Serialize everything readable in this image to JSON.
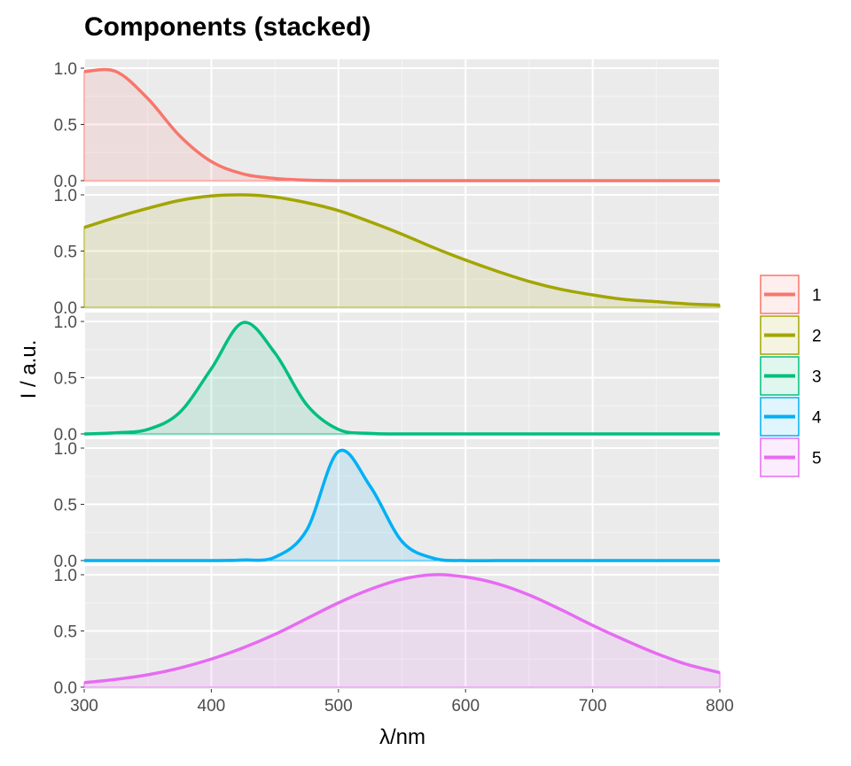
{
  "chart_data": {
    "type": "area",
    "title": "Components (stacked)",
    "xlabel": "λ/nm",
    "ylabel": "I / a.u.",
    "xlim": [
      300,
      800
    ],
    "ylim": [
      0,
      1.0
    ],
    "x_ticks": [
      300,
      400,
      500,
      600,
      700,
      800
    ],
    "y_ticks": [
      0.0,
      0.5,
      1.0
    ],
    "y_tick_labels": [
      "0.0",
      "0.5",
      "1.0"
    ],
    "grid": true,
    "legend_position": "right",
    "panel_background": "#ebebeb",
    "x": [
      300,
      325,
      350,
      375,
      400,
      425,
      450,
      475,
      500,
      525,
      550,
      575,
      600,
      625,
      650,
      675,
      700,
      725,
      750,
      775,
      800
    ],
    "series": [
      {
        "name": "1",
        "color": "#f8766d",
        "values": [
          0.97,
          0.97,
          0.73,
          0.4,
          0.17,
          0.06,
          0.02,
          0.005,
          0.0,
          0.0,
          0.0,
          0.0,
          0.0,
          0.0,
          0.0,
          0.0,
          0.0,
          0.0,
          0.0,
          0.0,
          0.0
        ]
      },
      {
        "name": "2",
        "color": "#a3a500",
        "values": [
          0.71,
          0.8,
          0.88,
          0.95,
          0.99,
          1.0,
          0.98,
          0.93,
          0.86,
          0.76,
          0.65,
          0.53,
          0.42,
          0.32,
          0.23,
          0.16,
          0.11,
          0.07,
          0.05,
          0.03,
          0.02
        ]
      },
      {
        "name": "3",
        "color": "#00bf7d",
        "values": [
          0.0,
          0.01,
          0.04,
          0.19,
          0.58,
          0.99,
          0.72,
          0.26,
          0.04,
          0.005,
          0.0,
          0.0,
          0.0,
          0.0,
          0.0,
          0.0,
          0.0,
          0.0,
          0.0,
          0.0,
          0.0
        ]
      },
      {
        "name": "4",
        "color": "#00b0f6",
        "values": [
          0.0,
          0.0,
          0.0,
          0.0,
          0.0,
          0.005,
          0.03,
          0.27,
          0.97,
          0.66,
          0.17,
          0.02,
          0.0,
          0.0,
          0.0,
          0.0,
          0.0,
          0.0,
          0.0,
          0.0,
          0.0
        ]
      },
      {
        "name": "5",
        "color": "#e76bf3",
        "values": [
          0.04,
          0.07,
          0.11,
          0.17,
          0.25,
          0.35,
          0.47,
          0.61,
          0.75,
          0.87,
          0.96,
          1.0,
          0.98,
          0.92,
          0.82,
          0.69,
          0.55,
          0.42,
          0.3,
          0.2,
          0.13
        ]
      }
    ]
  }
}
